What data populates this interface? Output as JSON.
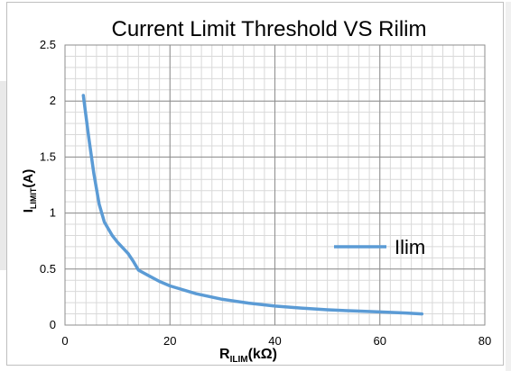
{
  "chart_data": {
    "type": "line",
    "title": "Current Limit Threshold VS Rilim",
    "xlabel": {
      "main": "R",
      "sub": "ILIM",
      "tail": "(kΩ)"
    },
    "ylabel": {
      "main": "I",
      "sub": "LIMIT",
      "tail": "(A)"
    },
    "xlim": [
      0,
      80
    ],
    "ylim": [
      0,
      2.5
    ],
    "xticks": [
      0,
      20,
      40,
      60,
      80
    ],
    "yticks": [
      0,
      0.5,
      1,
      1.5,
      2,
      2.5
    ],
    "x_major_step": 20,
    "x_minor_step": 2,
    "y_major_step": 0.5,
    "y_minor_step": 0.1,
    "grid": true,
    "legend_position": "right",
    "series": [
      {
        "name": "Ilim",
        "color": "#5b9bd5",
        "x": [
          3.5,
          4.5,
          5.5,
          6.5,
          7.5,
          9,
          10,
          12,
          13,
          14,
          16,
          18,
          20,
          25,
          30,
          35,
          40,
          45,
          50,
          55,
          60,
          65,
          68
        ],
        "y": [
          2.05,
          1.68,
          1.35,
          1.08,
          0.92,
          0.8,
          0.74,
          0.64,
          0.57,
          0.49,
          0.44,
          0.39,
          0.35,
          0.28,
          0.23,
          0.196,
          0.17,
          0.152,
          0.137,
          0.126,
          0.117,
          0.108,
          0.1
        ]
      }
    ]
  }
}
